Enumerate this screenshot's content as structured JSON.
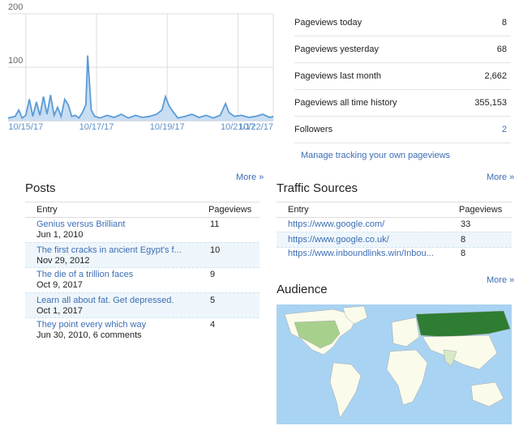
{
  "chart_data": {
    "type": "line",
    "x": [
      14.5,
      14.7,
      14.8,
      14.9,
      15.0,
      15.1,
      15.2,
      15.3,
      15.4,
      15.5,
      15.6,
      15.7,
      15.8,
      15.9,
      16.0,
      16.1,
      16.2,
      16.3,
      16.4,
      16.5,
      16.6,
      16.7,
      16.75,
      16.85,
      16.95,
      17.1,
      17.3,
      17.5,
      17.7,
      17.9,
      18.1,
      18.3,
      18.5,
      18.7,
      18.85,
      18.95,
      19.05,
      19.15,
      19.3,
      19.5,
      19.7,
      19.9,
      20.1,
      20.3,
      20.5,
      20.65,
      20.75,
      20.9,
      21.1,
      21.3,
      21.5,
      21.7,
      21.9,
      22.0
    ],
    "series": [
      {
        "name": "Pageviews",
        "color": "#5b9bd5",
        "values": [
          5,
          8,
          20,
          5,
          10,
          40,
          8,
          35,
          10,
          45,
          12,
          48,
          10,
          25,
          8,
          40,
          30,
          8,
          10,
          5,
          15,
          30,
          122,
          20,
          8,
          5,
          10,
          6,
          12,
          5,
          10,
          6,
          8,
          12,
          20,
          45,
          28,
          18,
          5,
          8,
          12,
          6,
          10,
          5,
          10,
          32,
          15,
          8,
          10,
          6,
          8,
          12,
          6,
          8
        ]
      }
    ],
    "xlim": [
      14.5,
      22.0
    ],
    "xticks": [
      {
        "value": 15,
        "label": "10/15/17"
      },
      {
        "value": 17,
        "label": "10/17/17"
      },
      {
        "value": 19,
        "label": "10/19/17"
      },
      {
        "value": 21,
        "label": "10/21/17"
      },
      {
        "value": 22,
        "label": "10/22/17"
      }
    ],
    "ylim": [
      0,
      200
    ],
    "yticks": [
      100,
      200
    ],
    "grid": true
  },
  "stats": [
    {
      "label": "Pageviews today",
      "value": "8"
    },
    {
      "label": "Pageviews yesterday",
      "value": "68"
    },
    {
      "label": "Pageviews last month",
      "value": "2,662"
    },
    {
      "label": "Pageviews all time history",
      "value": "355,153"
    },
    {
      "label": "Followers",
      "value": "2"
    }
  ],
  "manage_link": "Manage tracking your own pageviews",
  "more": "More »",
  "posts": {
    "title": "Posts",
    "columns": [
      "Entry",
      "Pageviews"
    ],
    "rows": [
      {
        "title": "Genius versus Brilliant",
        "date": "Jun 1, 2010",
        "views": "11"
      },
      {
        "title": "The first cracks in ancient Egypt's f...",
        "date": "Nov 29, 2012",
        "views": "10"
      },
      {
        "title": "The die of a trillion faces",
        "date": "Oct 9, 2017",
        "views": "9"
      },
      {
        "title": "Learn all about fat. Get depressed.",
        "date": "Oct 1, 2017",
        "views": "5"
      },
      {
        "title": "They point every which way",
        "date": "Jun 30, 2010, 6 comments",
        "views": "4"
      }
    ]
  },
  "traffic": {
    "title": "Traffic Sources",
    "columns": [
      "Entry",
      "Pageviews"
    ],
    "rows": [
      {
        "url": "https://www.google.com/",
        "views": "33"
      },
      {
        "url": "https://www.google.co.uk/",
        "views": "8"
      },
      {
        "url": "https://www.inboundlinks.win/Inbou...",
        "views": "8"
      }
    ]
  },
  "audience": {
    "title": "Audience"
  }
}
